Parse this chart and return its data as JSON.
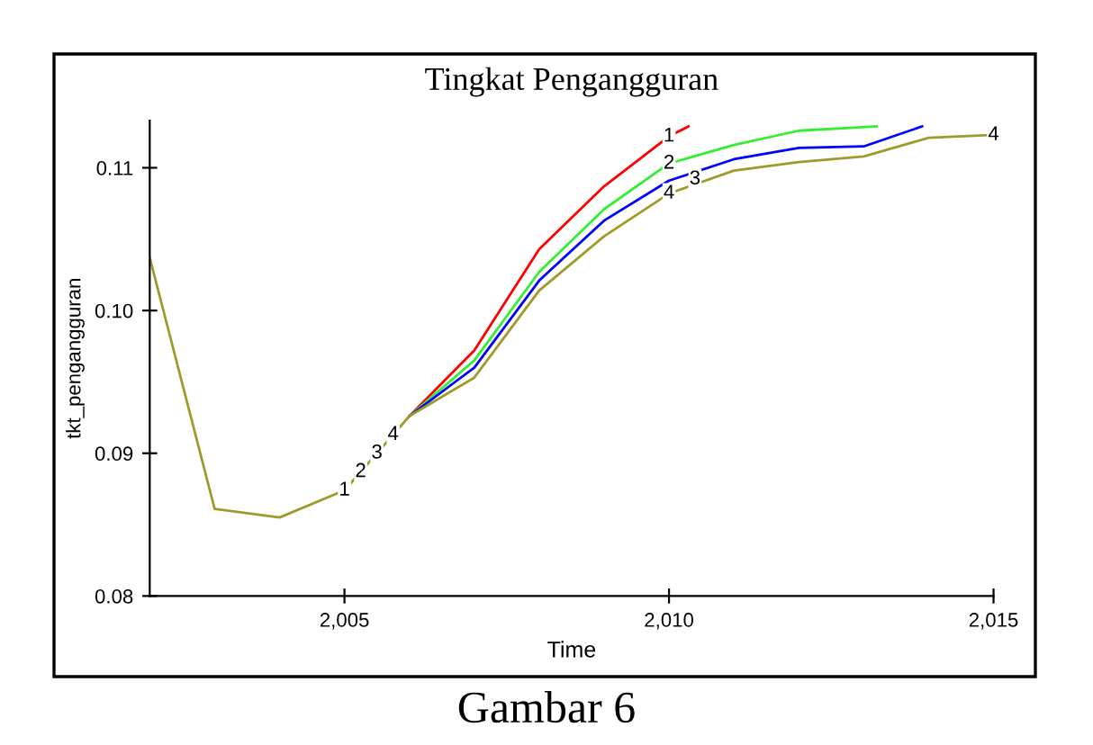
{
  "chart_data": {
    "type": "line",
    "title": "Tingkat Pengangguran",
    "xlabel": "Time",
    "ylabel": "tkt_pengangguran",
    "series": [
      {
        "color": "#ff0000",
        "x": [
          2006,
          2007,
          2008,
          2009,
          2010,
          2010.3
        ],
        "values": [
          0.0926,
          0.0972,
          0.1043,
          0.1087,
          0.1122,
          0.1129
        ]
      },
      {
        "color": "#33ee33",
        "x": [
          2006,
          2007,
          2008,
          2009,
          2010,
          2011,
          2012,
          2013.2
        ],
        "values": [
          0.0926,
          0.0965,
          0.1027,
          0.1071,
          0.1103,
          0.1116,
          0.1126,
          0.1129
        ]
      },
      {
        "color": "#0000ff",
        "x": [
          2006,
          2007,
          2008,
          2009,
          2010,
          2011,
          2012,
          2013,
          2013.9
        ],
        "values": [
          0.0926,
          0.096,
          0.1021,
          0.1063,
          0.1091,
          0.1106,
          0.1114,
          0.1115,
          0.1129
        ]
      },
      {
        "color": "#a09a2a",
        "x": [
          2002,
          2003,
          2004,
          2005,
          2006,
          2007,
          2008,
          2009,
          2010,
          2011,
          2012,
          2013,
          2014,
          2015
        ],
        "values": [
          0.1037,
          0.0861,
          0.0855,
          0.0874,
          0.0926,
          0.0953,
          0.1014,
          0.1052,
          0.1082,
          0.1098,
          0.1104,
          0.1108,
          0.1121,
          0.1123
        ]
      }
    ],
    "xlim": [
      2002,
      2015
    ],
    "xticks": [
      {
        "value": 2005,
        "label": "2,005"
      },
      {
        "value": 2010,
        "label": "2,010"
      },
      {
        "value": 2015,
        "label": "2,015"
      }
    ],
    "ylim": [
      0.08,
      0.1133
    ],
    "yticks": [
      {
        "value": 0.08,
        "label": "0.08"
      },
      {
        "value": 0.09,
        "label": "0.09"
      },
      {
        "value": 0.1,
        "label": "0.10"
      },
      {
        "value": 0.11,
        "label": "0.11"
      }
    ],
    "grid": false,
    "legend": false,
    "marker": "none",
    "line_style": "solid",
    "annotations": [
      {
        "text": "1",
        "x": 2005,
        "y": 0.0874
      },
      {
        "text": "2",
        "x": 2005.25,
        "y": 0.0887
      },
      {
        "text": "3",
        "x": 2005.5,
        "y": 0.09
      },
      {
        "text": "4",
        "x": 2005.75,
        "y": 0.0913
      },
      {
        "text": "1",
        "x": 2010,
        "y": 0.1122
      },
      {
        "text": "2",
        "x": 2010,
        "y": 0.1103
      },
      {
        "text": "3",
        "x": 2010.4,
        "y": 0.1092
      },
      {
        "text": "4",
        "x": 2010,
        "y": 0.1082
      },
      {
        "text": "4",
        "x": 2015,
        "y": 0.1123
      },
      "Gambar 6"
    ]
  }
}
